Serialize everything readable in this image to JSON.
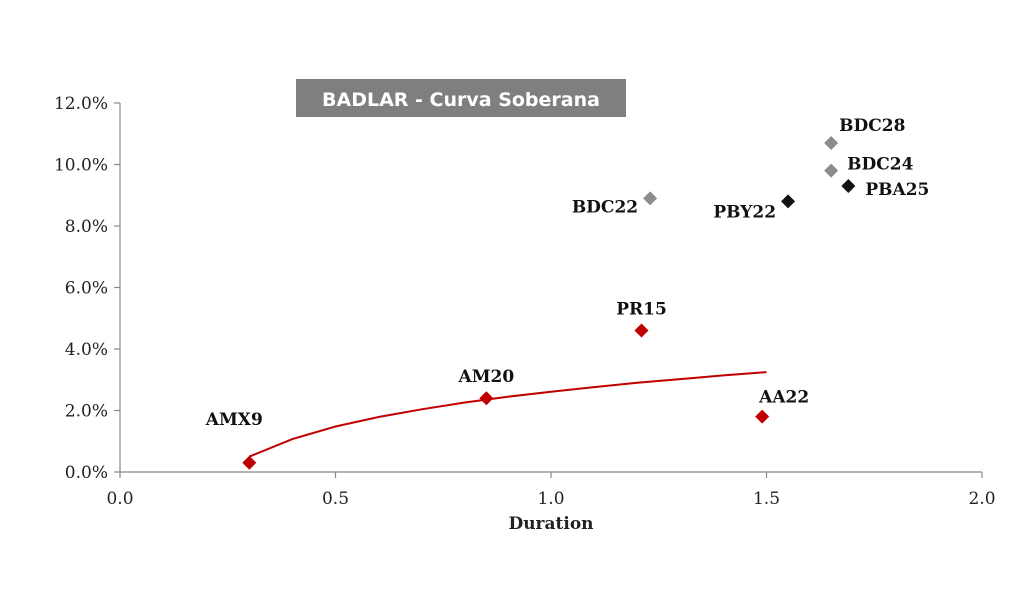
{
  "chart_data": {
    "type": "scatter",
    "title": "BADLAR - Curva Soberana",
    "xlabel": "Duration",
    "ylabel": "",
    "xlim": [
      0,
      2
    ],
    "ylim": [
      0,
      0.12
    ],
    "x_ticks": [
      "0.0",
      "0.5",
      "1.0",
      "1.5",
      "2.0"
    ],
    "y_ticks": [
      "0.0%",
      "2.0%",
      "4.0%",
      "6.0%",
      "8.0%",
      "10.0%",
      "12.0%"
    ],
    "grid": false,
    "legend": "none",
    "colors": {
      "red": "#c00000",
      "gray": "#8c8c8c",
      "black": "#111111",
      "title_bg": "#7f7f7f"
    },
    "points": [
      {
        "label": "AMX9",
        "x": 0.3,
        "y": 0.003,
        "color": "red",
        "label_pos": "above-left"
      },
      {
        "label": "AM20",
        "x": 0.85,
        "y": 0.024,
        "color": "red",
        "label_pos": "above"
      },
      {
        "label": "PR15",
        "x": 1.21,
        "y": 0.046,
        "color": "red",
        "label_pos": "above"
      },
      {
        "label": "AA22",
        "x": 1.49,
        "y": 0.018,
        "color": "red",
        "label_pos": "above-right"
      },
      {
        "label": "BDC22",
        "x": 1.23,
        "y": 0.089,
        "color": "gray",
        "label_pos": "left"
      },
      {
        "label": "BDC28",
        "x": 1.65,
        "y": 0.107,
        "color": "gray",
        "label_pos": "above-right"
      },
      {
        "label": "BDC24",
        "x": 1.65,
        "y": 0.098,
        "color": "gray",
        "label_pos": "right-up"
      },
      {
        "label": "PBY22",
        "x": 1.55,
        "y": 0.088,
        "color": "black",
        "label_pos": "below-left"
      },
      {
        "label": "PBA25",
        "x": 1.69,
        "y": 0.093,
        "color": "black",
        "label_pos": "right"
      }
    ],
    "trendline": {
      "type": "logarithmic",
      "color": "red",
      "x": [
        0.3,
        0.4,
        0.5,
        0.6,
        0.7,
        0.8,
        0.9,
        1.0,
        1.1,
        1.2,
        1.3,
        1.4,
        1.5
      ],
      "y": [
        0.005,
        0.0107,
        0.0148,
        0.0179,
        0.0204,
        0.0226,
        0.0245,
        0.0261,
        0.0276,
        0.029,
        0.0302,
        0.0314,
        0.0325
      ]
    }
  }
}
